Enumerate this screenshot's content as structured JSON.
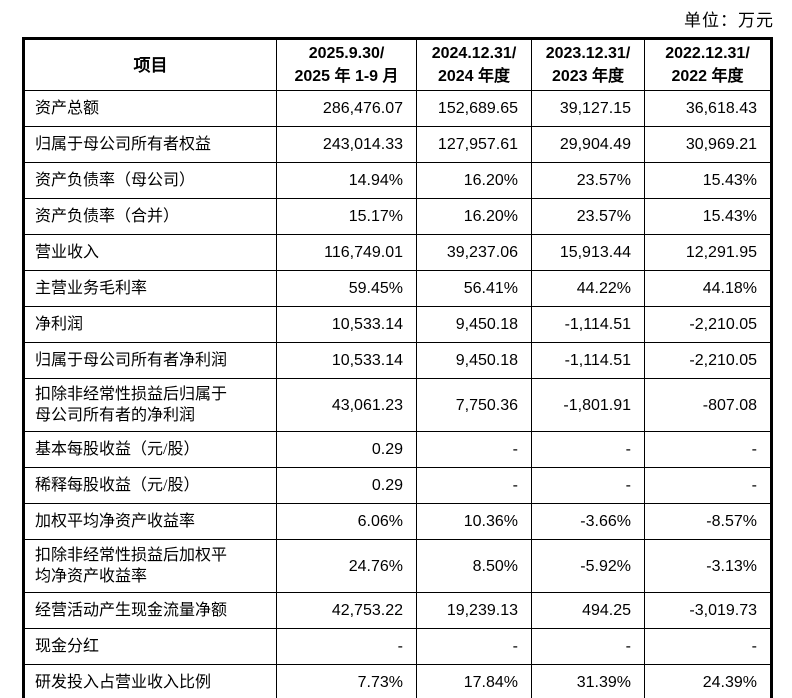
{
  "unit_label": "单位：万元",
  "table": {
    "columns": [
      {
        "label": "项目"
      },
      {
        "label": "2025.9.30/\n2025 年 1-9 月"
      },
      {
        "label": "2024.12.31/\n2024 年度"
      },
      {
        "label": "2023.12.31/\n2023 年度"
      },
      {
        "label": "2022.12.31/\n2022 年度"
      }
    ],
    "rows": [
      {
        "label": "资产总额",
        "values": [
          "286,476.07",
          "152,689.65",
          "39,127.15",
          "36,618.43"
        ]
      },
      {
        "label": "归属于母公司所有者权益",
        "values": [
          "243,014.33",
          "127,957.61",
          "29,904.49",
          "30,969.21"
        ]
      },
      {
        "label": "资产负债率（母公司）",
        "values": [
          "14.94%",
          "16.20%",
          "23.57%",
          "15.43%"
        ]
      },
      {
        "label": "资产负债率（合并）",
        "values": [
          "15.17%",
          "16.20%",
          "23.57%",
          "15.43%"
        ]
      },
      {
        "label": "营业收入",
        "values": [
          "116,749.01",
          "39,237.06",
          "15,913.44",
          "12,291.95"
        ]
      },
      {
        "label": "主营业务毛利率",
        "values": [
          "59.45%",
          "56.41%",
          "44.22%",
          "44.18%"
        ]
      },
      {
        "label": "净利润",
        "values": [
          "10,533.14",
          "9,450.18",
          "-1,114.51",
          "-2,210.05"
        ]
      },
      {
        "label": "归属于母公司所有者净利润",
        "values": [
          "10,533.14",
          "9,450.18",
          "-1,114.51",
          "-2,210.05"
        ]
      },
      {
        "label": "扣除非经常性损益后归属于\n母公司所有者的净利润",
        "values": [
          "43,061.23",
          "7,750.36",
          "-1,801.91",
          "-807.08"
        ]
      },
      {
        "label": "基本每股收益（元/股）",
        "values": [
          "0.29",
          "-",
          "-",
          "-"
        ]
      },
      {
        "label": "稀释每股收益（元/股）",
        "values": [
          "0.29",
          "-",
          "-",
          "-"
        ]
      },
      {
        "label": "加权平均净资产收益率",
        "values": [
          "6.06%",
          "10.36%",
          "-3.66%",
          "-8.57%"
        ]
      },
      {
        "label": "扣除非经常性损益后加权平\n均净资产收益率",
        "values": [
          "24.76%",
          "8.50%",
          "-5.92%",
          "-3.13%"
        ]
      },
      {
        "label": "经营活动产生现金流量净额",
        "values": [
          "42,753.22",
          "19,239.13",
          "494.25",
          "-3,019.73"
        ]
      },
      {
        "label": "现金分红",
        "values": [
          "-",
          "-",
          "-",
          "-"
        ]
      },
      {
        "label": "研发投入占营业收入比例",
        "values": [
          "7.73%",
          "17.84%",
          "31.39%",
          "24.39%"
        ]
      }
    ]
  }
}
